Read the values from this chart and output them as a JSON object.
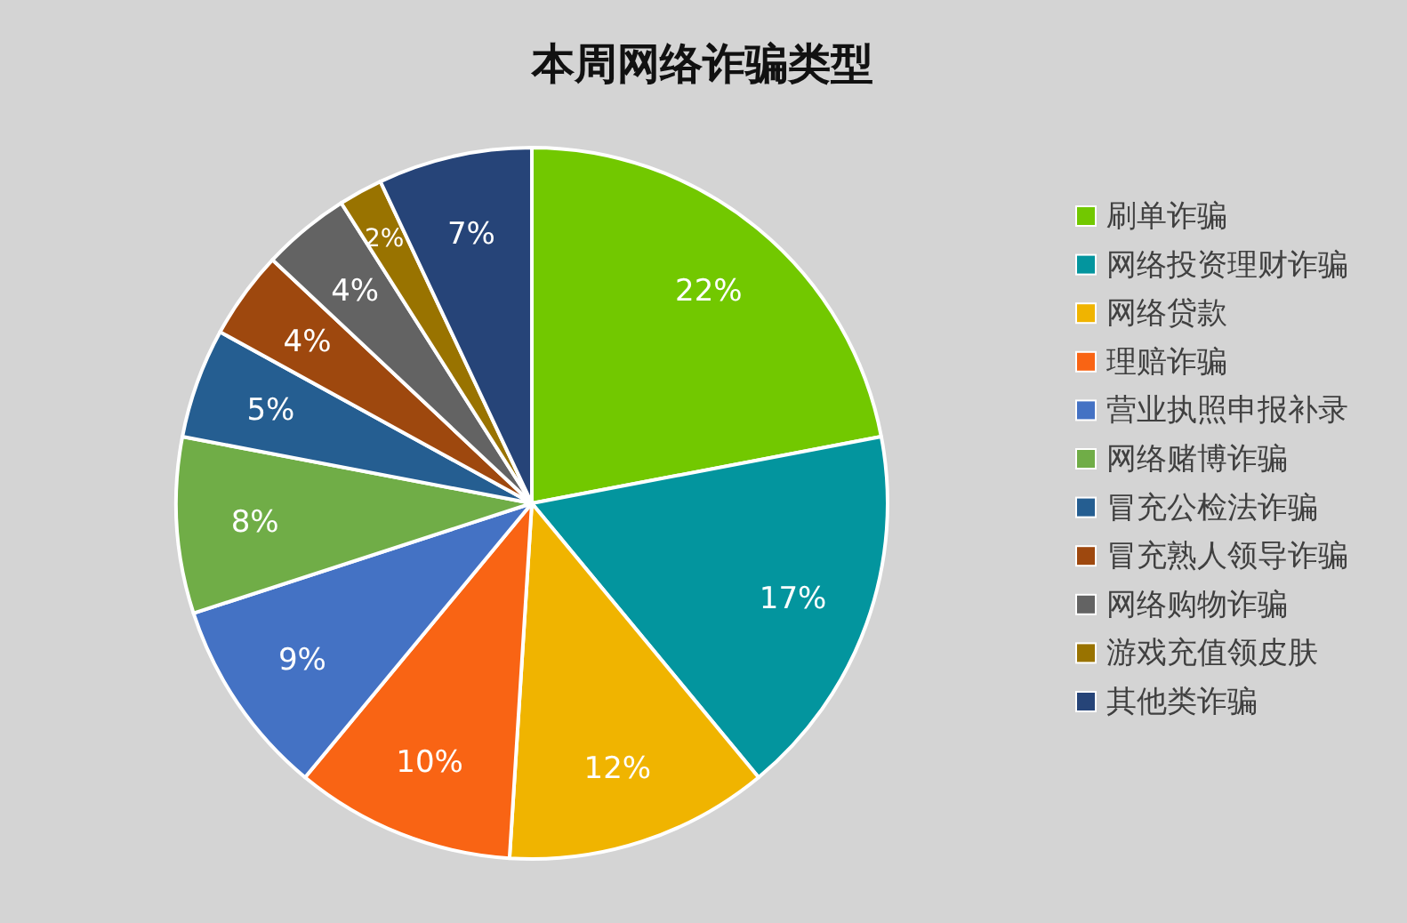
{
  "chart_data": {
    "type": "pie",
    "title": "本周网络诈骗类型",
    "categories": [
      "刷单诈骗",
      "网络投资理财诈骗",
      "网络贷款",
      "理赔诈骗",
      "营业执照申报补录",
      "网络赌博诈骗",
      "冒充公检法诈骗",
      "冒充熟人领导诈骗",
      "网络购物诈骗",
      "游戏充值领皮肤",
      "其他类诈骗"
    ],
    "values": [
      22,
      17,
      12,
      10,
      9,
      8,
      5,
      4,
      4,
      2,
      7
    ],
    "colors": [
      "#72c800",
      "#03959e",
      "#f0b400",
      "#f96414",
      "#4472c4",
      "#70ad47",
      "#255e91",
      "#9e480e",
      "#636363",
      "#997300",
      "#264478"
    ],
    "value_labels": [
      "22%",
      "17%",
      "12%",
      "10%",
      "9%",
      "8%",
      "5%",
      "4%",
      "4%",
      "2%",
      "7%"
    ],
    "legend": "right"
  }
}
